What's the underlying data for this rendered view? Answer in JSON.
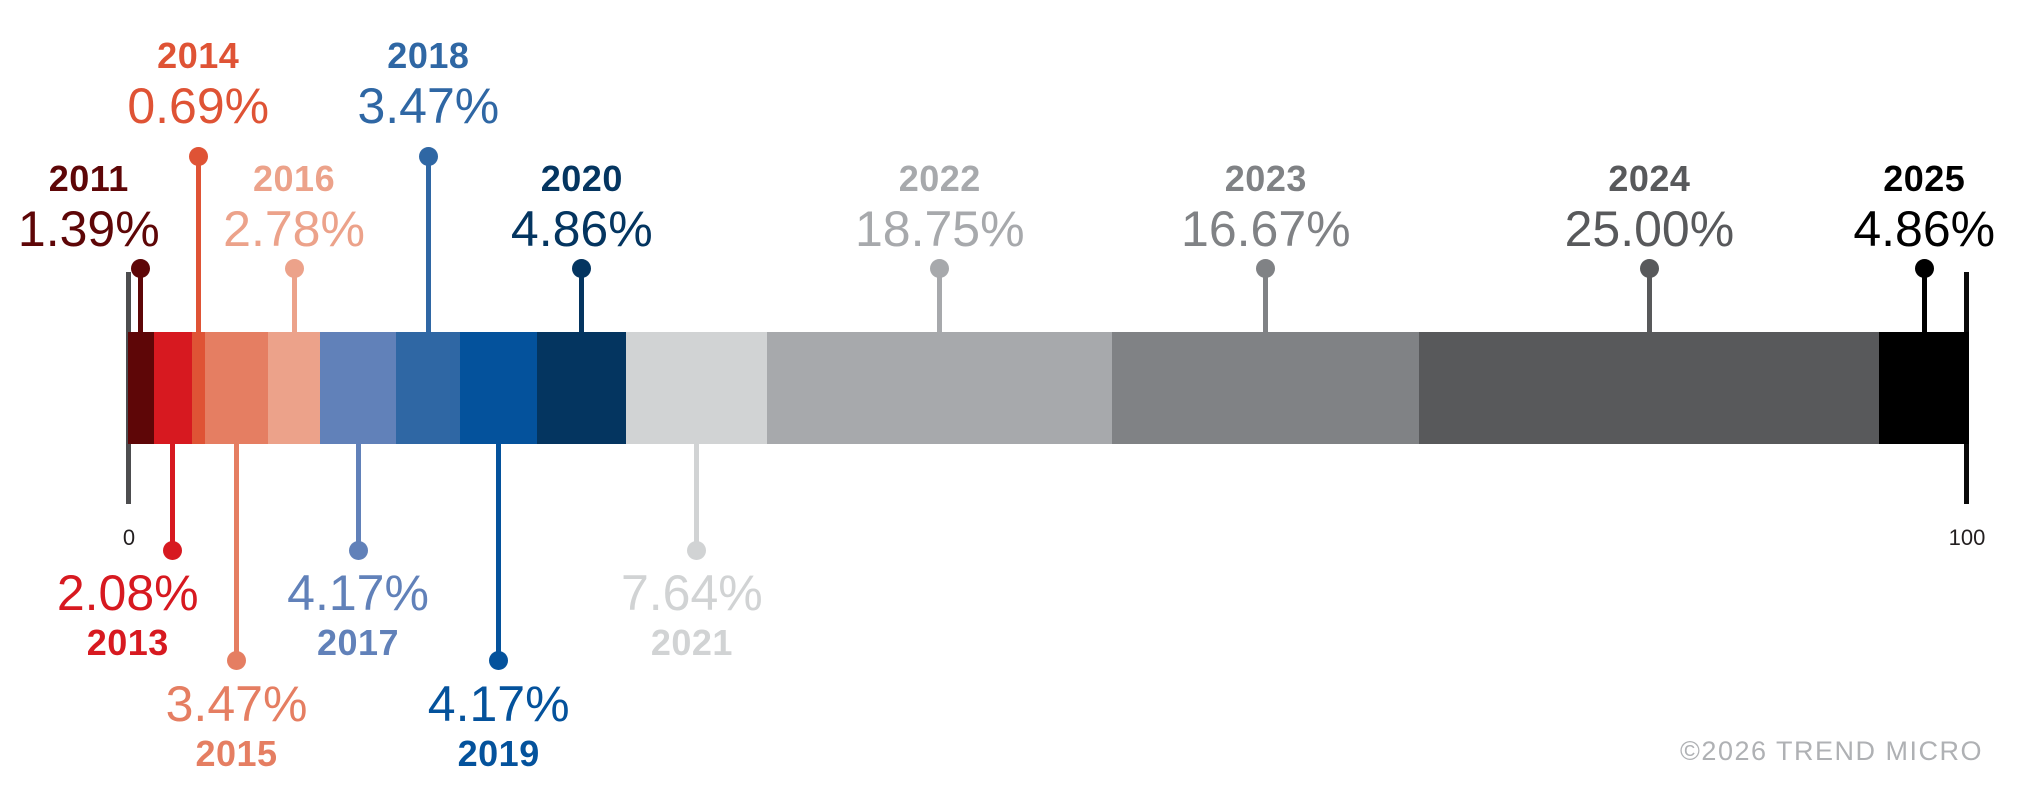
{
  "chart_data": {
    "type": "bar",
    "variant": "stacked-horizontal-timeline",
    "title": "",
    "xlabel": "",
    "ylabel": "",
    "axis": {
      "min_label": "0",
      "max_label": "100",
      "range": [
        0,
        100
      ]
    },
    "legend": "none",
    "grid": false,
    "credit": "©2026 TREND MICRO",
    "series": [
      {
        "year": "2011",
        "value": 1.39,
        "label": "1.39%",
        "color": "#5e0607",
        "side": "top",
        "tier": "near",
        "label_dx": -52
      },
      {
        "year": "2013",
        "value": 2.08,
        "label": "2.08%",
        "color": "#d71920",
        "side": "bottom",
        "tier": "near",
        "label_dx": -45
      },
      {
        "year": "2014",
        "value": 0.69,
        "label": "0.69%",
        "color": "#df5335",
        "side": "top",
        "tier": "far",
        "label_dx": 0
      },
      {
        "year": "2015",
        "value": 3.47,
        "label": "3.47%",
        "color": "#e57e62",
        "side": "bottom",
        "tier": "far",
        "label_dx": 0
      },
      {
        "year": "2016",
        "value": 2.78,
        "label": "2.78%",
        "color": "#eca28a",
        "side": "top",
        "tier": "near",
        "label_dx": 0
      },
      {
        "year": "2017",
        "value": 4.17,
        "label": "4.17%",
        "color": "#6181b9",
        "side": "bottom",
        "tier": "near",
        "label_dx": 0
      },
      {
        "year": "2018",
        "value": 3.47,
        "label": "3.47%",
        "color": "#2f67a4",
        "side": "top",
        "tier": "far",
        "label_dx": 0
      },
      {
        "year": "2019",
        "value": 4.17,
        "label": "4.17%",
        "color": "#04529c",
        "side": "bottom",
        "tier": "far",
        "label_dx": 0
      },
      {
        "year": "2020",
        "value": 4.86,
        "label": "4.86%",
        "color": "#043560",
        "side": "top",
        "tier": "near",
        "label_dx": 0
      },
      {
        "year": "2021",
        "value": 7.64,
        "label": "7.64%",
        "color": "#d1d3d4",
        "side": "bottom",
        "tier": "near",
        "label_dx": -5
      },
      {
        "year": "2022",
        "value": 18.75,
        "label": "18.75%",
        "color": "#a7a9ac",
        "side": "top",
        "tier": "near",
        "label_dx": 0
      },
      {
        "year": "2023",
        "value": 16.67,
        "label": "16.67%",
        "color": "#808285",
        "side": "top",
        "tier": "near",
        "label_dx": 0
      },
      {
        "year": "2024",
        "value": 25.0,
        "label": "25.00%",
        "color": "#58595b",
        "side": "top",
        "tier": "near",
        "label_dx": 0
      },
      {
        "year": "2025",
        "value": 4.86,
        "label": "4.86%",
        "color": "#000000",
        "side": "top",
        "tier": "near",
        "label_dx": 0
      }
    ]
  }
}
